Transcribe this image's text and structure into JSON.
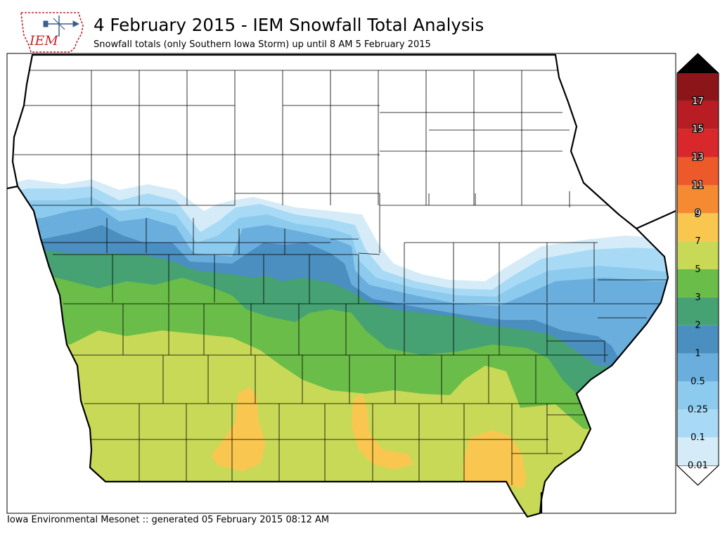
{
  "header": {
    "logo_text": "IEM",
    "title": "4 February 2015 - IEM Snowfall Total Analysis",
    "subtitle": "Snowfall totals (only Southern Iowa Storm) up until 8 AM 5 February 2015"
  },
  "footer": {
    "text": "Iowa Environmental Mesonet :: generated 05 February 2015 08:12 AM"
  },
  "colorbar": {
    "levels": [
      {
        "label": "0.01",
        "color": "#d5ecf8"
      },
      {
        "label": "0.1",
        "color": "#a8daf5"
      },
      {
        "label": "0.25",
        "color": "#8ccaee"
      },
      {
        "label": "0.5",
        "color": "#69aedd"
      },
      {
        "label": "1",
        "color": "#4a8fbf"
      },
      {
        "label": "2",
        "color": "#46a273"
      },
      {
        "label": "3",
        "color": "#6abd48"
      },
      {
        "label": "5",
        "color": "#c8d957"
      },
      {
        "label": "7",
        "color": "#f9c74f"
      },
      {
        "label": "9",
        "color": "#f58a33"
      },
      {
        "label": "11",
        "color": "#ec5a2b"
      },
      {
        "label": "13",
        "color": "#d9282b"
      },
      {
        "label": "15",
        "color": "#b81d24"
      },
      {
        "label": "17",
        "color": "#8b1519"
      }
    ],
    "overflow_color": "#000000",
    "underflow_color": "#ffffff"
  },
  "map": {
    "region": "Iowa"
  }
}
